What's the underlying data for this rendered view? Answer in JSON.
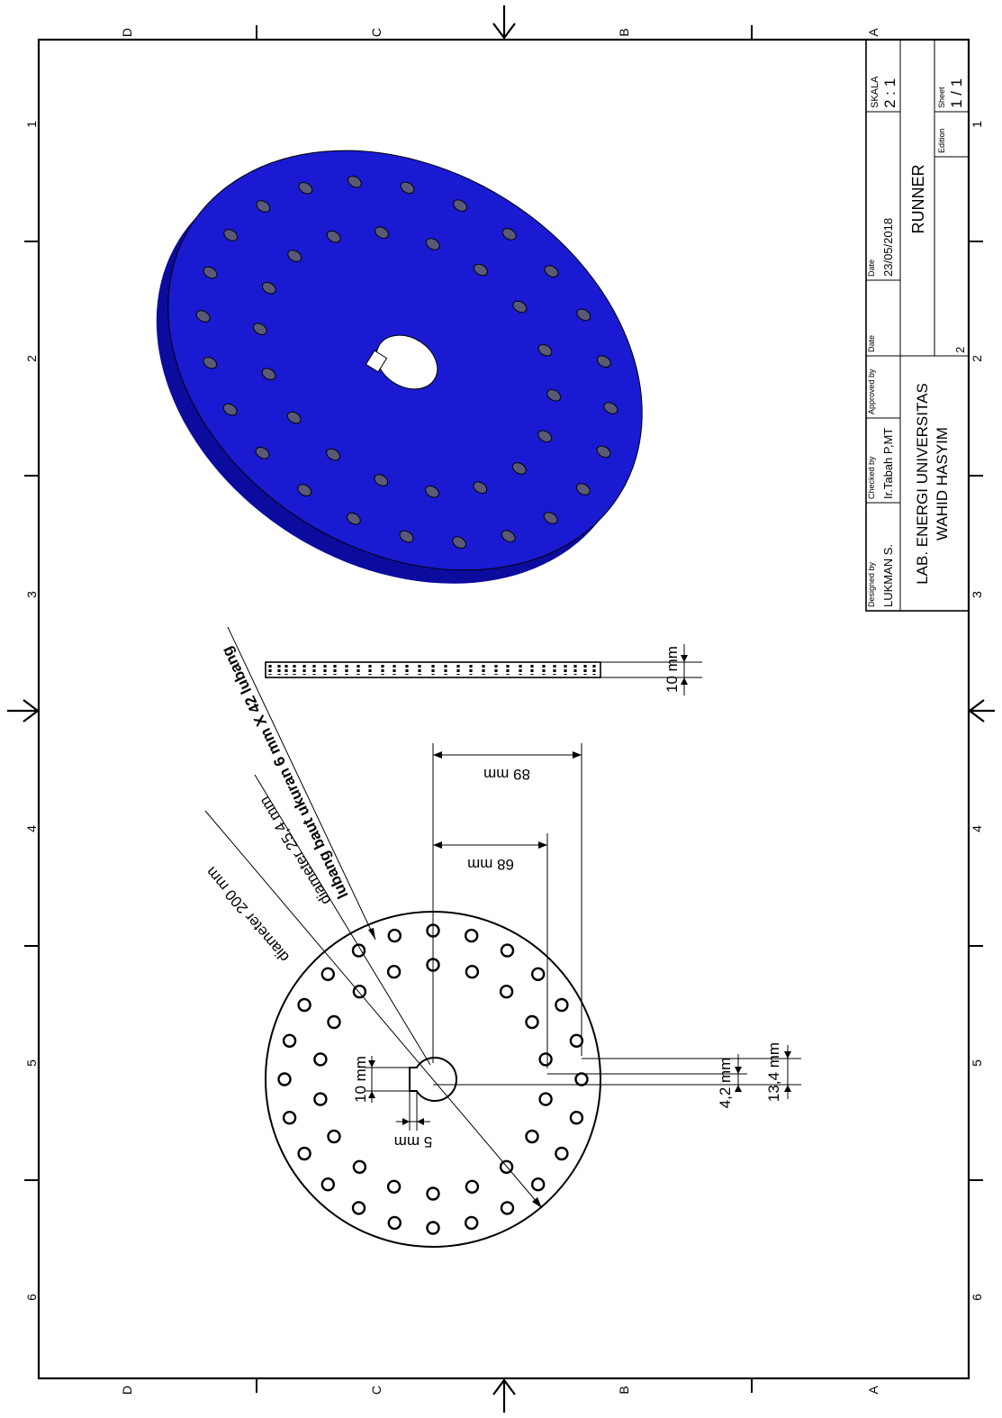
{
  "zone_letters": [
    "D",
    "C",
    "B",
    "A"
  ],
  "zone_numbers": [
    "1",
    "2",
    "3",
    "4",
    "5",
    "6"
  ],
  "title_block": {
    "designed_by_label": "Designed by",
    "designed_by": "LUKMAN S.",
    "checked_by_label": "Checked by",
    "checked_by": "Ir.Tabah P,MT",
    "approved_by_label": "Approved by",
    "approved_by": "",
    "date_label_1": "Date",
    "date_1": "",
    "date_label_2": "Date",
    "date_2": "23/05/2018",
    "scale_label": "SKALA",
    "scale": "2 : 1",
    "organization_line1": "LAB. ENERGI UNIVERSITAS",
    "organization_line2": "WAHID HASYIM",
    "part_name": "RUNNER",
    "drawing_number": "2",
    "edition_label": "Edition",
    "edition": "",
    "sheet_label": "Sheet",
    "sheet": "1 / 1"
  },
  "dimensions": {
    "outer_diameter": "diameter 200 mm",
    "inner_diameter": "diameter 25,4 mm",
    "bolt_holes": "lubang baut ukuran 6 mm X 42 lubang",
    "outer_ring_offset": "89 mm",
    "inner_ring_offset": "68 mm",
    "keyway_width": "10 mm",
    "keyway_depth": "5 mm",
    "hole_spacing_small": "4,2 mm",
    "hole_spacing_large": "13,4 mm",
    "thickness": "10 mm"
  },
  "colors": {
    "part": "#1a1ad2",
    "part_shade": "#0b0b9e",
    "holes": "#5a5a78"
  }
}
